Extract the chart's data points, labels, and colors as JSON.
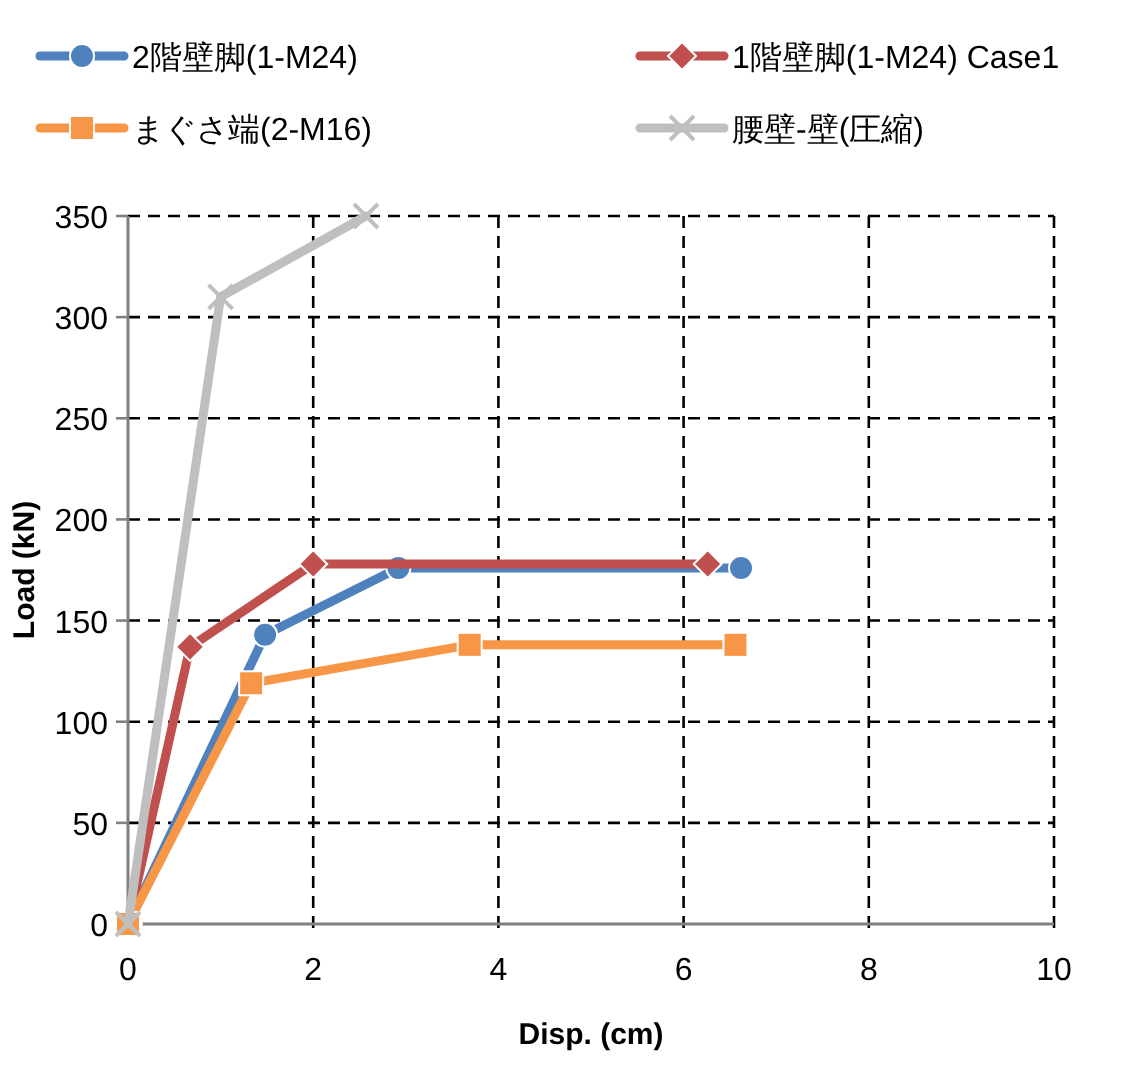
{
  "chart_data": {
    "type": "line",
    "xlabel": "Disp. (cm)",
    "ylabel": "Load (kN)",
    "xlim": [
      0,
      10
    ],
    "ylim": [
      0,
      350
    ],
    "xticks": [
      0,
      2,
      4,
      6,
      8,
      10
    ],
    "yticks": [
      0,
      50,
      100,
      150,
      200,
      250,
      300,
      350
    ],
    "grid": true,
    "legend": "top",
    "line_style": "solid",
    "series": [
      {
        "name": "2階壁脚(1-M24)",
        "color": "#4f81bd",
        "marker": "circle",
        "x": [
          0,
          1.48,
          2.92,
          6.62
        ],
        "values": [
          0,
          143,
          176,
          176
        ]
      },
      {
        "name": "1階壁脚(1-M24)  Case1",
        "color": "#c0504d",
        "marker": "diamond",
        "x": [
          0,
          0.67,
          2.0,
          6.26
        ],
        "values": [
          0,
          137,
          178,
          178
        ]
      },
      {
        "name": "まぐさ端(2-M16)",
        "color": "#f79646",
        "marker": "square",
        "x": [
          0,
          1.33,
          3.69,
          6.56
        ],
        "values": [
          0,
          119,
          138,
          138
        ]
      },
      {
        "name": "腰壁-壁(圧縮)",
        "color": "#bfbfbf",
        "marker": "cross",
        "x": [
          0,
          1.0,
          2.57
        ],
        "values": [
          0,
          310,
          350
        ]
      }
    ]
  }
}
